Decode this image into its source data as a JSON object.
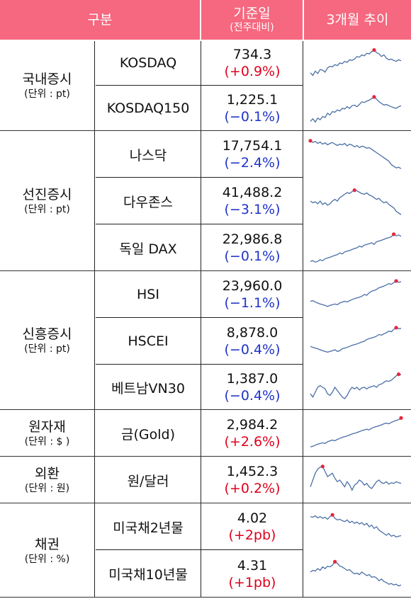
{
  "header": {
    "category": "구분",
    "base_date": "기준일",
    "base_date_sub": "(전주대비)",
    "trend": "3개월 추이"
  },
  "colors": {
    "header_bg": "#f5687f",
    "up": "#e0001b",
    "down": "#1f33c9",
    "line": "#4a6fa5",
    "marker": "#e8253a"
  },
  "groups": [
    {
      "name": "국내증시",
      "unit": "(단위 : pt)",
      "rows": [
        {
          "item": "KOSDAQ",
          "value": "734.3",
          "change": "(+0.9%)",
          "dir": "up",
          "trend": [
            0.2,
            0.12,
            0.25,
            0.18,
            0.3,
            0.28,
            0.22,
            0.35,
            0.4,
            0.38,
            0.45,
            0.42,
            0.5,
            0.48,
            0.55,
            0.52,
            0.6,
            0.58,
            0.62,
            0.7,
            0.68,
            0.75,
            0.72,
            0.8,
            0.78,
            0.85,
            0.9,
            0.82,
            0.78,
            0.7,
            0.75,
            0.65,
            0.6,
            0.62,
            0.58,
            0.55,
            0.6,
            0.57
          ]
        },
        {
          "item": "KOSDAQ150",
          "value": "1,225.1",
          "change": "(−0.1%)",
          "dir": "down",
          "trend": [
            0.1,
            0.18,
            0.08,
            0.2,
            0.15,
            0.25,
            0.22,
            0.35,
            0.3,
            0.4,
            0.38,
            0.45,
            0.42,
            0.5,
            0.48,
            0.55,
            0.5,
            0.58,
            0.6,
            0.55,
            0.62,
            0.7,
            0.68,
            0.72,
            0.75,
            0.8,
            0.85,
            0.78,
            0.7,
            0.65,
            0.6,
            0.62,
            0.58,
            0.55,
            0.52,
            0.5,
            0.55,
            0.58
          ]
        }
      ]
    },
    {
      "name": "선진증시",
      "unit": "(단위 : pt)",
      "rows": [
        {
          "item": "나스닥",
          "value": "17,754.1",
          "change": "(−2.4%)",
          "dir": "down",
          "trend": [
            0.9,
            0.85,
            0.88,
            0.82,
            0.86,
            0.8,
            0.84,
            0.78,
            0.82,
            0.85,
            0.8,
            0.76,
            0.8,
            0.78,
            0.82,
            0.75,
            0.8,
            0.77,
            0.72,
            0.76,
            0.7,
            0.74,
            0.72,
            0.68,
            0.7,
            0.65,
            0.6,
            0.55,
            0.5,
            0.45,
            0.4,
            0.35,
            0.3,
            0.2,
            0.15,
            0.1,
            0.12,
            0.08
          ]
        },
        {
          "item": "다우존스",
          "value": "41,488.2",
          "change": "(−3.1%)",
          "dir": "down",
          "trend": [
            0.5,
            0.45,
            0.48,
            0.42,
            0.5,
            0.4,
            0.45,
            0.38,
            0.42,
            0.5,
            0.55,
            0.5,
            0.6,
            0.65,
            0.7,
            0.75,
            0.72,
            0.78,
            0.82,
            0.8,
            0.76,
            0.72,
            0.7,
            0.74,
            0.68,
            0.65,
            0.6,
            0.55,
            0.58,
            0.5,
            0.45,
            0.48,
            0.4,
            0.35,
            0.3,
            0.2,
            0.15,
            0.1
          ]
        },
        {
          "item": "독일 DAX",
          "value": "22,986.8",
          "change": "(−0.1%)",
          "dir": "down",
          "trend": [
            0.1,
            0.12,
            0.08,
            0.1,
            0.15,
            0.12,
            0.18,
            0.2,
            0.22,
            0.25,
            0.28,
            0.3,
            0.35,
            0.32,
            0.38,
            0.4,
            0.42,
            0.45,
            0.48,
            0.5,
            0.55,
            0.52,
            0.58,
            0.6,
            0.62,
            0.65,
            0.6,
            0.68,
            0.7,
            0.72,
            0.75,
            0.78,
            0.8,
            0.82,
            0.9,
            0.85,
            0.88,
            0.84
          ]
        }
      ]
    },
    {
      "name": "신흥증시",
      "unit": "(단위 : pt)",
      "rows": [
        {
          "item": "HSI",
          "value": "23,960.0",
          "change": "(−1.1%)",
          "dir": "down",
          "trend": [
            0.3,
            0.32,
            0.28,
            0.25,
            0.22,
            0.2,
            0.18,
            0.15,
            0.18,
            0.2,
            0.22,
            0.2,
            0.25,
            0.28,
            0.3,
            0.28,
            0.32,
            0.35,
            0.38,
            0.4,
            0.42,
            0.45,
            0.5,
            0.48,
            0.55,
            0.6,
            0.62,
            0.65,
            0.7,
            0.72,
            0.75,
            0.78,
            0.82,
            0.8,
            0.85,
            0.9,
            0.86,
            0.88
          ]
        },
        {
          "item": "HSCEI",
          "value": "8,878.0",
          "change": "(−0.4%)",
          "dir": "down",
          "trend": [
            0.35,
            0.32,
            0.3,
            0.28,
            0.25,
            0.22,
            0.2,
            0.18,
            0.2,
            0.22,
            0.25,
            0.2,
            0.22,
            0.28,
            0.3,
            0.32,
            0.35,
            0.38,
            0.4,
            0.42,
            0.45,
            0.48,
            0.5,
            0.55,
            0.58,
            0.6,
            0.62,
            0.65,
            0.7,
            0.68,
            0.72,
            0.75,
            0.8,
            0.78,
            0.85,
            0.9,
            0.87,
            0.88
          ]
        },
        {
          "item": "베트남VN30",
          "value": "1,387.0",
          "change": "(−0.4%)",
          "dir": "down",
          "trend": [
            0.3,
            0.2,
            0.35,
            0.5,
            0.55,
            0.5,
            0.45,
            0.3,
            0.25,
            0.35,
            0.5,
            0.4,
            0.3,
            0.2,
            0.15,
            0.25,
            0.4,
            0.5,
            0.45,
            0.5,
            0.42,
            0.48,
            0.5,
            0.45,
            0.5,
            0.52,
            0.55,
            0.5,
            0.58,
            0.6,
            0.65,
            0.7,
            0.68,
            0.72,
            0.78,
            0.85,
            0.9,
            0.88
          ]
        }
      ]
    },
    {
      "name": "원자재",
      "unit": "(단위 : $ )",
      "rows": [
        {
          "item": "금(Gold)",
          "value": "2,984.2",
          "change": "(+2.6%)",
          "dir": "up",
          "trend": [
            0.1,
            0.12,
            0.15,
            0.18,
            0.2,
            0.22,
            0.2,
            0.25,
            0.28,
            0.3,
            0.28,
            0.32,
            0.35,
            0.38,
            0.4,
            0.42,
            0.45,
            0.48,
            0.5,
            0.52,
            0.55,
            0.58,
            0.6,
            0.62,
            0.6,
            0.65,
            0.68,
            0.7,
            0.72,
            0.75,
            0.78,
            0.8,
            0.78,
            0.82,
            0.85,
            0.88,
            0.9,
            0.95
          ]
        }
      ]
    },
    {
      "name": "외환",
      "unit": "(단위 : 원)",
      "rows": [
        {
          "item": "원/달러",
          "value": "1,452.3",
          "change": "(+0.2%)",
          "dir": "up",
          "trend": [
            0.3,
            0.5,
            0.7,
            0.82,
            0.88,
            0.9,
            0.75,
            0.6,
            0.65,
            0.7,
            0.55,
            0.45,
            0.5,
            0.4,
            0.3,
            0.45,
            0.35,
            0.2,
            0.35,
            0.4,
            0.5,
            0.45,
            0.35,
            0.4,
            0.3,
            0.25,
            0.35,
            0.45,
            0.5,
            0.42,
            0.4,
            0.45,
            0.38,
            0.42,
            0.4,
            0.45,
            0.42,
            0.4
          ]
        }
      ]
    },
    {
      "name": "채권",
      "unit": "(단위 : %)",
      "rows": [
        {
          "item": "미국채2년물",
          "value": "4.02",
          "change": "(+2pb)",
          "dir": "up",
          "trend": [
            0.8,
            0.78,
            0.82,
            0.76,
            0.8,
            0.75,
            0.78,
            0.72,
            0.8,
            0.85,
            0.75,
            0.7,
            0.72,
            0.68,
            0.65,
            0.7,
            0.62,
            0.66,
            0.6,
            0.64,
            0.58,
            0.62,
            0.55,
            0.6,
            0.5,
            0.55,
            0.45,
            0.5,
            0.4,
            0.35,
            0.3,
            0.25,
            0.3,
            0.22,
            0.25,
            0.2,
            0.22,
            0.24
          ]
        },
        {
          "item": "미국채10년물",
          "value": "4.31",
          "change": "(+1pb)",
          "dir": "up",
          "trend": [
            0.55,
            0.6,
            0.58,
            0.65,
            0.6,
            0.7,
            0.65,
            0.72,
            0.7,
            0.75,
            0.85,
            0.8,
            0.72,
            0.7,
            0.65,
            0.6,
            0.62,
            0.55,
            0.5,
            0.52,
            0.48,
            0.55,
            0.5,
            0.45,
            0.48,
            0.4,
            0.42,
            0.38,
            0.3,
            0.35,
            0.28,
            0.25,
            0.2,
            0.22,
            0.18,
            0.2,
            0.15,
            0.18
          ]
        }
      ]
    }
  ]
}
